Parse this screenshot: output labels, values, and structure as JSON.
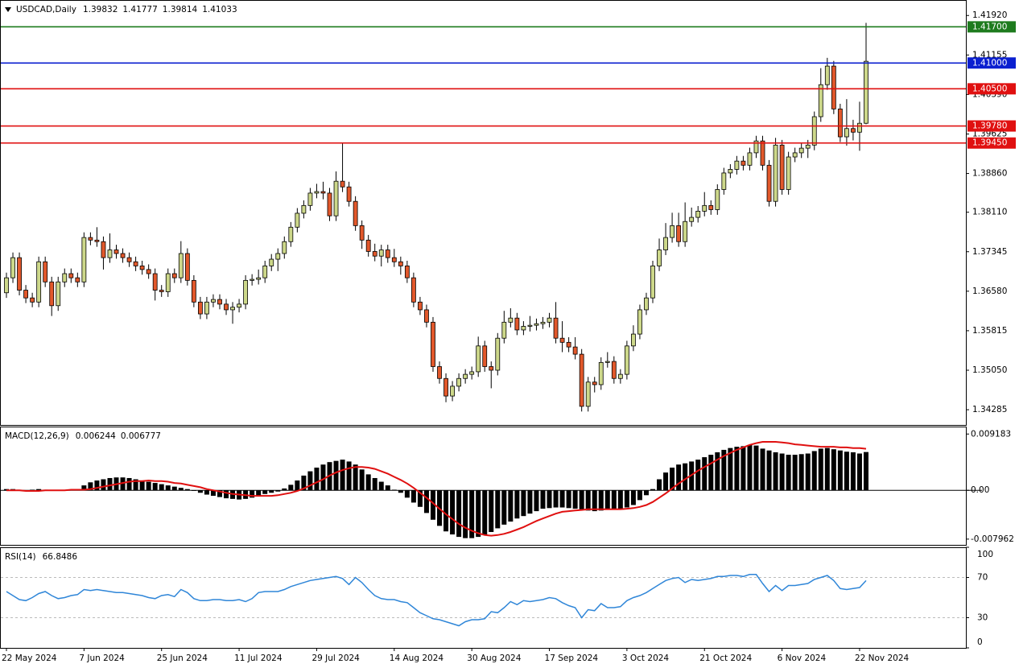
{
  "chart_data": [
    {
      "type": "candlestick",
      "title": "USDCAD,Daily",
      "categories": [
        "22 May 2024",
        null,
        null,
        null,
        null,
        null,
        null,
        null,
        null,
        null,
        null,
        null,
        "7 Jun 2024",
        null,
        null,
        null,
        null,
        null,
        null,
        null,
        null,
        null,
        null,
        null,
        "25 Jun 2024",
        null,
        null,
        null,
        null,
        null,
        null,
        null,
        null,
        null,
        null,
        null,
        "11 Jul 2024",
        null,
        null,
        null,
        null,
        null,
        null,
        null,
        null,
        null,
        null,
        null,
        "29 Jul 2024",
        null,
        null,
        null,
        null,
        null,
        null,
        null,
        null,
        null,
        null,
        null,
        "14 Aug 2024",
        null,
        null,
        null,
        null,
        null,
        null,
        null,
        null,
        null,
        null,
        null,
        "30 Aug 2024",
        null,
        null,
        null,
        null,
        null,
        null,
        null,
        null,
        null,
        null,
        null,
        "17 Sep 2024",
        null,
        null,
        null,
        null,
        null,
        null,
        null,
        null,
        null,
        null,
        null,
        "3 Oct 2024",
        null,
        null,
        null,
        null,
        null,
        null,
        null,
        null,
        null,
        null,
        null,
        "21 Oct 2024",
        null,
        null,
        null,
        null,
        null,
        null,
        null,
        null,
        null,
        null,
        null,
        "6 Nov 2024",
        null,
        null,
        null,
        null,
        null,
        null,
        null,
        null,
        null,
        null,
        null,
        "22 Nov 2024",
        null
      ],
      "open": [
        1.3655,
        1.3684,
        1.3723,
        1.366,
        1.3645,
        1.3637,
        1.3715,
        1.3676,
        1.363,
        1.3676,
        1.3692,
        1.3684,
        1.3676,
        1.3762,
        1.3757,
        1.3754,
        1.3723,
        1.3738,
        1.3731,
        1.3723,
        1.3715,
        1.3707,
        1.37,
        1.3692,
        1.366,
        1.3657,
        1.3692,
        1.3684,
        1.3731,
        1.3679,
        1.3637,
        1.3614,
        1.3637,
        1.3642,
        1.3633,
        1.3622,
        1.3627,
        1.3633,
        1.3679,
        1.3681,
        1.3684,
        1.3707,
        1.372,
        1.3731,
        1.3754,
        1.3782,
        1.3809,
        1.3824,
        1.3848,
        1.3851,
        1.3848,
        1.3804,
        1.3871,
        1.386,
        1.3832,
        1.3785,
        1.3757,
        1.3735,
        1.3726,
        1.3738,
        1.3723,
        1.3715,
        1.3707,
        1.3684,
        1.3637,
        1.3622,
        1.3598,
        1.3512,
        1.3489,
        1.3455,
        1.3474,
        1.3489,
        1.3497,
        1.3502,
        1.3552,
        1.3512,
        1.3505,
        1.3567,
        1.3598,
        1.3606,
        1.3583,
        1.359,
        1.3592,
        1.3595,
        1.3598,
        1.3606,
        1.3567,
        1.3559,
        1.355,
        1.3536,
        1.3435,
        1.3482,
        1.3477,
        1.352,
        1.3522,
        1.3489,
        1.3497,
        1.3552,
        1.3575,
        1.3622,
        1.3645,
        1.3707,
        1.3738,
        1.3762,
        1.3785,
        1.3754,
        1.3793,
        1.3801,
        1.3813,
        1.3824,
        1.3816,
        1.3855,
        1.3887,
        1.3894,
        1.391,
        1.3902,
        1.3926,
        1.3949,
        1.3902,
        1.3832,
        1.3941,
        1.3855,
        1.3918,
        1.3926,
        1.3935,
        1.3941,
        1.3996,
        1.4058,
        1.4094,
        1.4011,
        1.3957,
        1.3973,
        1.3966,
        1.39832
      ],
      "high": [
        1.3694,
        1.3733,
        1.3733,
        1.367,
        1.3655,
        1.3725,
        1.3725,
        1.3686,
        1.3686,
        1.3702,
        1.3702,
        1.3694,
        1.3772,
        1.3772,
        1.3782,
        1.3764,
        1.377,
        1.3748,
        1.3741,
        1.3733,
        1.3725,
        1.3717,
        1.371,
        1.3702,
        1.367,
        1.3702,
        1.3702,
        1.3755,
        1.3741,
        1.3689,
        1.3647,
        1.3647,
        1.3652,
        1.3652,
        1.3643,
        1.3637,
        1.3643,
        1.3689,
        1.3691,
        1.37,
        1.3717,
        1.373,
        1.3741,
        1.3764,
        1.3792,
        1.3819,
        1.3834,
        1.3858,
        1.3866,
        1.387,
        1.3858,
        1.389,
        1.3945,
        1.387,
        1.3842,
        1.3795,
        1.3767,
        1.375,
        1.3748,
        1.3748,
        1.374,
        1.3725,
        1.3717,
        1.3694,
        1.3647,
        1.3632,
        1.3608,
        1.3522,
        1.3499,
        1.3484,
        1.3499,
        1.3507,
        1.3512,
        1.357,
        1.3562,
        1.3522,
        1.3577,
        1.362,
        1.3625,
        1.3616,
        1.36,
        1.361,
        1.3605,
        1.3608,
        1.3616,
        1.3637,
        1.36,
        1.3569,
        1.3569,
        1.3546,
        1.3492,
        1.3492,
        1.353,
        1.354,
        1.3532,
        1.3507,
        1.3562,
        1.3592,
        1.3632,
        1.3655,
        1.3717,
        1.376,
        1.379,
        1.381,
        1.381,
        1.383,
        1.382,
        1.3823,
        1.385,
        1.3834,
        1.3865,
        1.3897,
        1.3904,
        1.392,
        1.392,
        1.3936,
        1.3959,
        1.3959,
        1.3912,
        1.3955,
        1.3951,
        1.3928,
        1.3936,
        1.3945,
        1.3951,
        1.4006,
        1.409,
        1.411,
        1.4104,
        1.4021,
        1.403,
        1.399,
        1.4025,
        1.41777
      ],
      "low": [
        1.3645,
        1.3674,
        1.365,
        1.3635,
        1.3627,
        1.3627,
        1.3666,
        1.361,
        1.362,
        1.3666,
        1.3674,
        1.3666,
        1.3666,
        1.3747,
        1.3744,
        1.37,
        1.3713,
        1.3721,
        1.3713,
        1.3705,
        1.3697,
        1.369,
        1.3682,
        1.364,
        1.3647,
        1.3647,
        1.3674,
        1.3674,
        1.3669,
        1.3627,
        1.3604,
        1.3604,
        1.3627,
        1.3623,
        1.3612,
        1.3595,
        1.3617,
        1.3623,
        1.3669,
        1.3671,
        1.3674,
        1.3697,
        1.3697,
        1.3721,
        1.3744,
        1.3772,
        1.3799,
        1.3814,
        1.3838,
        1.3836,
        1.3794,
        1.3794,
        1.385,
        1.3822,
        1.3775,
        1.374,
        1.3725,
        1.3716,
        1.3706,
        1.3713,
        1.3705,
        1.369,
        1.3674,
        1.3627,
        1.3612,
        1.3588,
        1.3502,
        1.3479,
        1.3443,
        1.3445,
        1.3464,
        1.3479,
        1.3487,
        1.3492,
        1.3502,
        1.347,
        1.3495,
        1.3557,
        1.3588,
        1.3573,
        1.3573,
        1.358,
        1.3582,
        1.3585,
        1.3588,
        1.3557,
        1.354,
        1.354,
        1.3526,
        1.3425,
        1.3425,
        1.3462,
        1.3467,
        1.351,
        1.3479,
        1.3479,
        1.3487,
        1.3542,
        1.3565,
        1.3612,
        1.3635,
        1.3697,
        1.3728,
        1.3752,
        1.3744,
        1.3744,
        1.3783,
        1.3791,
        1.3803,
        1.3806,
        1.3806,
        1.3845,
        1.3877,
        1.3884,
        1.3892,
        1.3892,
        1.3916,
        1.3892,
        1.3822,
        1.3822,
        1.3845,
        1.3845,
        1.3908,
        1.3916,
        1.3916,
        1.3931,
        1.3986,
        1.4048,
        1.4001,
        1.3947,
        1.394,
        1.395,
        1.393,
        1.39814
      ],
      "close": [
        1.3684,
        1.3723,
        1.366,
        1.3645,
        1.3637,
        1.3715,
        1.3676,
        1.363,
        1.3676,
        1.3692,
        1.3684,
        1.3676,
        1.3762,
        1.3757,
        1.3754,
        1.3723,
        1.3738,
        1.3731,
        1.3723,
        1.3715,
        1.3707,
        1.37,
        1.3692,
        1.366,
        1.3657,
        1.3692,
        1.3684,
        1.3731,
        1.3679,
        1.3637,
        1.3614,
        1.3637,
        1.3642,
        1.3633,
        1.3622,
        1.3627,
        1.3633,
        1.3679,
        1.3681,
        1.3684,
        1.3707,
        1.372,
        1.3731,
        1.3754,
        1.3782,
        1.3809,
        1.3824,
        1.3848,
        1.3851,
        1.3848,
        1.3804,
        1.3871,
        1.386,
        1.3832,
        1.3785,
        1.3757,
        1.3735,
        1.3726,
        1.3738,
        1.3723,
        1.3715,
        1.3707,
        1.3684,
        1.3637,
        1.3622,
        1.3598,
        1.3512,
        1.3489,
        1.3455,
        1.3474,
        1.3489,
        1.3497,
        1.3502,
        1.3552,
        1.3512,
        1.3505,
        1.3567,
        1.3598,
        1.3606,
        1.3583,
        1.359,
        1.3592,
        1.3595,
        1.3598,
        1.3606,
        1.3567,
        1.3559,
        1.355,
        1.3536,
        1.3435,
        1.3482,
        1.3477,
        1.352,
        1.3522,
        1.3489,
        1.3497,
        1.3552,
        1.3575,
        1.3622,
        1.3645,
        1.3707,
        1.3738,
        1.3762,
        1.3785,
        1.3754,
        1.3793,
        1.3801,
        1.3813,
        1.3824,
        1.3816,
        1.3855,
        1.3887,
        1.3894,
        1.391,
        1.3902,
        1.3926,
        1.3949,
        1.3902,
        1.3832,
        1.3941,
        1.3855,
        1.3918,
        1.3926,
        1.3935,
        1.3941,
        1.3996,
        1.4058,
        1.4094,
        1.4011,
        1.3957,
        1.3973,
        1.3966,
        1.39832,
        1.41033
      ],
      "bull_color": "#cdd88a",
      "bear_color": "#e2582b",
      "ylim": [
        1.3399,
        1.4222
      ],
      "yticks": [
        {
          "value": 1.4192,
          "label": "1.41920"
        },
        {
          "value": 1.41155,
          "label": "1.41155"
        },
        {
          "value": 1.4039,
          "label": "1.40390"
        },
        {
          "value": 1.39625,
          "label": "1.39625"
        },
        {
          "value": 1.3886,
          "label": "1.38860"
        },
        {
          "value": 1.3811,
          "label": "1.38110"
        },
        {
          "value": 1.37345,
          "label": "1.37345"
        },
        {
          "value": 1.3658,
          "label": "1.36580"
        },
        {
          "value": 1.35815,
          "label": "1.35815"
        },
        {
          "value": 1.3505,
          "label": "1.35050"
        },
        {
          "value": 1.34285,
          "label": "1.34285"
        }
      ],
      "levels": [
        {
          "value": 1.417,
          "label": "1.41700",
          "color": "#1e7b1e"
        },
        {
          "value": 1.41,
          "label": "1.41000",
          "color": "#0a1fd0"
        },
        {
          "value": 1.405,
          "label": "1.40500",
          "color": "#e01010"
        },
        {
          "value": 1.3978,
          "label": "1.39780",
          "color": "#e01010"
        },
        {
          "value": 1.3945,
          "label": "1.39450",
          "color": "#e01010"
        }
      ]
    },
    {
      "type": "macd",
      "title": "MACD(12,26,9)",
      "histogram": [
        0.0002,
        0.0002,
        0.0001,
        -0.0001,
        0.0001,
        0.0002,
        0.0001,
        0,
        -0.0001,
        0,
        0.0001,
        0.0001,
        0.0008,
        0.0013,
        0.0016,
        0.0018,
        0.002,
        0.0021,
        0.0021,
        0.002,
        0.0018,
        0.0016,
        0.0014,
        0.0012,
        0.001,
        0.0008,
        0.0006,
        0.0004,
        0.0002,
        -0.0001,
        -0.0004,
        -0.0007,
        -0.0009,
        -0.0011,
        -0.0013,
        -0.0014,
        -0.0015,
        -0.0014,
        -0.0012,
        -0.0009,
        -0.0006,
        -0.0004,
        -0.0002,
        0.0003,
        0.0009,
        0.0016,
        0.0024,
        0.0031,
        0.0037,
        0.0042,
        0.0046,
        0.0048,
        0.005,
        0.0047,
        0.0042,
        0.0034,
        0.0026,
        0.002,
        0.0014,
        0.0008,
        0.0001,
        -0.0004,
        -0.0012,
        -0.002,
        -0.0027,
        -0.0037,
        -0.0048,
        -0.0058,
        -0.0067,
        -0.0072,
        -0.0076,
        -0.0078,
        -0.0078,
        -0.0076,
        -0.0073,
        -0.0068,
        -0.0062,
        -0.0056,
        -0.0051,
        -0.0046,
        -0.0042,
        -0.0038,
        -0.0034,
        -0.003,
        -0.0029,
        -0.0028,
        -0.0028,
        -0.0029,
        -0.003,
        -0.0031,
        -0.0033,
        -0.0034,
        -0.0033,
        -0.0031,
        -0.003,
        -0.003,
        -0.0028,
        -0.0024,
        -0.0016,
        -0.0008,
        0.0002,
        0.0018,
        0.0029,
        0.0037,
        0.0042,
        0.0044,
        0.0047,
        0.005,
        0.0054,
        0.0058,
        0.0062,
        0.0066,
        0.0069,
        0.0071,
        0.0072,
        0.0074,
        0.0073,
        0.0068,
        0.0065,
        0.0062,
        0.006,
        0.0058,
        0.0058,
        0.0059,
        0.006,
        0.0064,
        0.0068,
        0.0069,
        0.0067,
        0.0065,
        0.0063,
        0.0062,
        0.006,
        0.006244
      ],
      "signal": [
        0,
        0,
        0,
        -0.0001,
        -0.0001,
        -0.0001,
        0,
        0,
        0,
        0,
        0.0001,
        0.0001,
        0.0001,
        0.0002,
        0.0004,
        0.0006,
        0.0008,
        0.001,
        0.0012,
        0.0014,
        0.0015,
        0.0015,
        0.0016,
        0.0015,
        0.0015,
        0.0014,
        0.0012,
        0.0011,
        0.0009,
        0.0007,
        0.0005,
        0.0002,
        0,
        -0.0002,
        -0.0004,
        -0.0006,
        -0.0007,
        -0.0008,
        -0.0009,
        -0.0009,
        -0.0009,
        -0.0009,
        -0.0008,
        -0.0006,
        -0.0004,
        -0.0001,
        0.0003,
        0.0008,
        0.0013,
        0.0018,
        0.0024,
        0.0029,
        0.0033,
        0.0036,
        0.0038,
        0.0038,
        0.0037,
        0.0035,
        0.0031,
        0.0027,
        0.0022,
        0.0017,
        0.0011,
        0.0004,
        -0.0004,
        -0.0012,
        -0.0021,
        -0.003,
        -0.0039,
        -0.0047,
        -0.0055,
        -0.0061,
        -0.0066,
        -0.007,
        -0.0073,
        -0.0074,
        -0.0073,
        -0.0071,
        -0.0068,
        -0.0064,
        -0.006,
        -0.0055,
        -0.005,
        -0.0046,
        -0.0042,
        -0.0038,
        -0.0035,
        -0.0034,
        -0.0033,
        -0.0032,
        -0.0031,
        -0.0031,
        -0.0031,
        -0.0031,
        -0.0031,
        -0.0031,
        -0.003,
        -0.0029,
        -0.0027,
        -0.0024,
        -0.0019,
        -0.0012,
        -0.0005,
        0.0003,
        0.0011,
        0.0018,
        0.0025,
        0.0032,
        0.0038,
        0.0044,
        0.005,
        0.0056,
        0.0061,
        0.0066,
        0.007,
        0.0074,
        0.0077,
        0.0079,
        0.0079,
        0.0079,
        0.0078,
        0.0077,
        0.0075,
        0.0074,
        0.0073,
        0.0072,
        0.0071,
        0.0071,
        0.0071,
        0.007,
        0.007,
        0.0069,
        0.0069,
        0.006777
      ],
      "hist_color": "#000000",
      "signal_color": "#e01010",
      "ylim": [
        -0.0089,
        0.0104
      ],
      "yticks": [
        0.009183,
        {
          "value": 0,
          "label": "0.00"
        },
        -0.007962
      ]
    },
    {
      "type": "line",
      "title": "RSI(14)",
      "values": [
        56,
        52,
        48,
        47,
        50,
        54,
        56,
        52,
        49,
        50,
        52,
        53,
        58,
        57,
        58,
        57,
        56,
        55,
        55,
        54,
        53,
        52,
        50,
        49,
        52,
        53,
        51,
        58,
        55,
        49,
        47,
        47,
        48,
        48,
        47,
        47,
        48,
        46,
        49,
        55,
        56,
        56,
        56,
        58,
        61,
        63,
        65,
        67,
        68,
        69,
        70,
        71,
        69,
        63,
        70,
        65,
        58,
        52,
        49,
        48,
        48,
        46,
        45,
        40,
        35,
        32,
        29,
        28,
        26,
        24,
        22,
        26,
        28,
        28,
        29,
        36,
        35,
        40,
        46,
        43,
        47,
        46,
        47,
        48,
        50,
        49,
        45,
        42,
        40,
        30,
        38,
        37,
        44,
        40,
        40,
        41,
        47,
        50,
        52,
        55,
        59,
        63,
        67,
        69,
        70,
        65,
        68,
        67,
        68,
        69,
        71,
        71,
        72,
        72,
        71,
        73,
        73,
        64,
        56,
        62,
        57,
        62,
        62,
        63,
        64,
        68,
        70,
        72,
        67,
        59,
        58,
        59,
        60,
        66.8486
      ],
      "color": "#2f86d8",
      "ylim": [
        0,
        100
      ],
      "yticks": [
        100,
        70,
        30,
        0
      ]
    }
  ]
}
